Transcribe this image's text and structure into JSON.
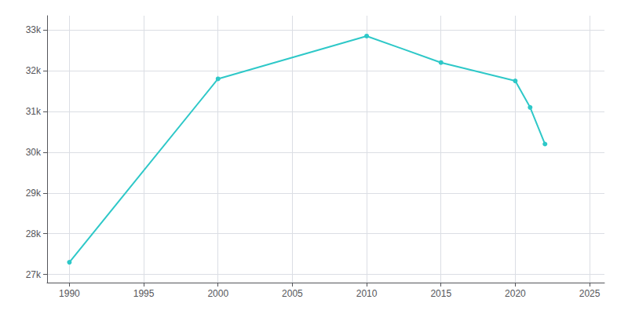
{
  "chart_data": {
    "type": "line",
    "x": [
      1990,
      2000,
      2010,
      2015,
      2020,
      2021,
      2022
    ],
    "values": [
      27300,
      31800,
      32850,
      32200,
      31750,
      31100,
      30200
    ],
    "color": "#2ec8c8",
    "marker": "circle",
    "xlim": [
      1988.5,
      2026
    ],
    "xticks": [
      1990,
      1995,
      2000,
      2005,
      2010,
      2015,
      2020,
      2025
    ],
    "ylim": [
      26800,
      33350
    ],
    "yticks": [
      {
        "value": 27000,
        "label": "27k"
      },
      {
        "value": 28000,
        "label": "28k"
      },
      {
        "value": 29000,
        "label": "29k"
      },
      {
        "value": 30000,
        "label": "30k"
      },
      {
        "value": 31000,
        "label": "31k"
      },
      {
        "value": 32000,
        "label": "32k"
      },
      {
        "value": 33000,
        "label": "33k"
      }
    ],
    "grid": true
  }
}
